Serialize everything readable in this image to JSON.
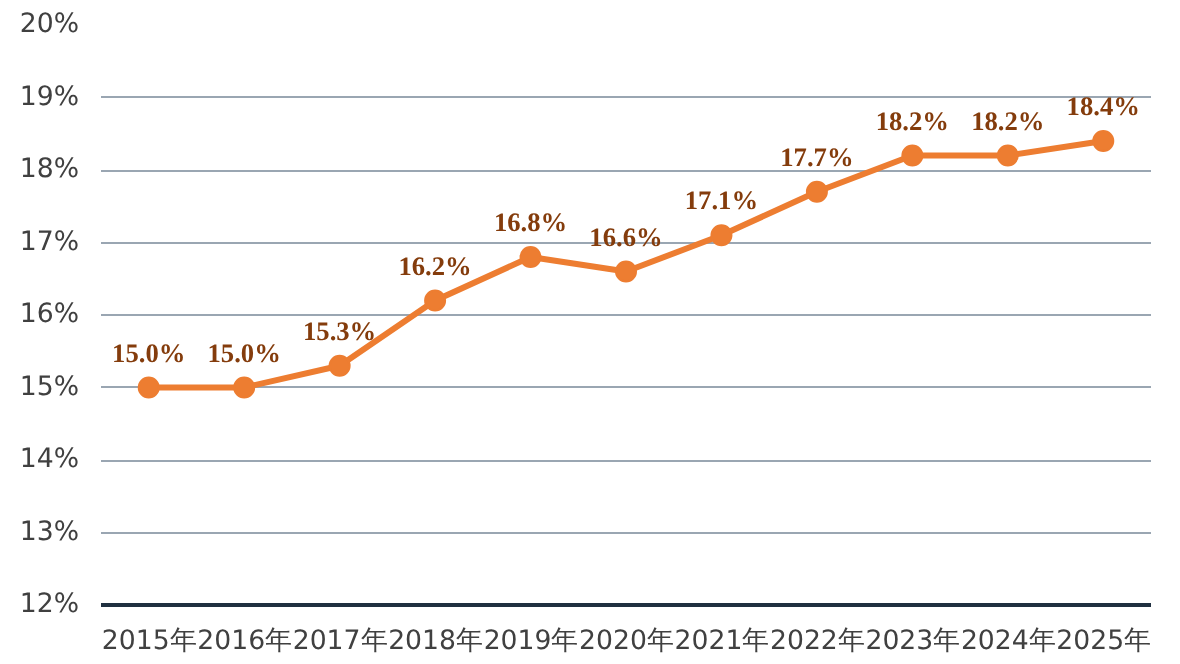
{
  "chart_data": {
    "type": "line",
    "categories": [
      "2015年",
      "2016年",
      "2017年",
      "2018年",
      "2019年",
      "2020年",
      "2021年",
      "2022年",
      "2023年",
      "2024年",
      "2025年"
    ],
    "series": [
      {
        "color": "#ed7d31",
        "values": [
          15.0,
          15.0,
          15.3,
          16.2,
          16.8,
          16.6,
          17.1,
          17.7,
          18.2,
          18.2,
          18.4
        ],
        "value_labels": [
          "15.0%",
          "15.0%",
          "15.3%",
          "16.2%",
          "16.8%",
          "16.6%",
          "17.1%",
          "17.7%",
          "18.2%",
          "18.2%",
          "18.4%"
        ]
      }
    ],
    "ylim": [
      12,
      20
    ],
    "yticks": [
      {
        "value": 12,
        "label": "12%"
      },
      {
        "value": 13,
        "label": "13%"
      },
      {
        "value": 14,
        "label": "14%"
      },
      {
        "value": 15,
        "label": "15%"
      },
      {
        "value": 16,
        "label": "16%"
      },
      {
        "value": 17,
        "label": "17%"
      },
      {
        "value": 18,
        "label": "18%"
      },
      {
        "value": 19,
        "label": "19%"
      },
      {
        "value": 20,
        "label": "20%"
      }
    ],
    "grid": "y",
    "marker": "circle",
    "line_style": "solid"
  }
}
